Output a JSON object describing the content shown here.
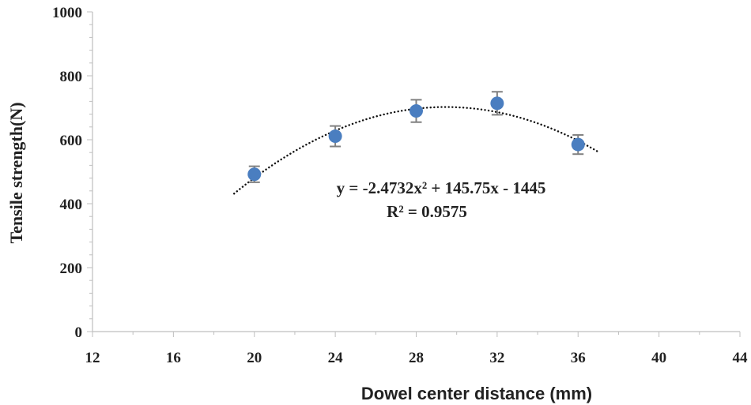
{
  "chart_data": {
    "type": "scatter",
    "xlabel": "Dowel center distance (mm)",
    "ylabel": "Tensile strength(N)",
    "xlim": [
      12,
      44
    ],
    "ylim": [
      0,
      1000
    ],
    "xticks": [
      12,
      16,
      20,
      24,
      28,
      32,
      36,
      40,
      44
    ],
    "yticks": [
      0,
      200,
      400,
      600,
      800,
      1000
    ],
    "grid": false,
    "points": [
      {
        "x": 20,
        "y": 492,
        "err": 25
      },
      {
        "x": 24,
        "y": 611,
        "err": 32
      },
      {
        "x": 28,
        "y": 690,
        "err": 35
      },
      {
        "x": 32,
        "y": 714,
        "err": 36
      },
      {
        "x": 36,
        "y": 585,
        "err": 30
      }
    ],
    "trendline": {
      "type": "polynomial",
      "order": 2,
      "coefficients": [
        -2.4732,
        145.75,
        -1445
      ],
      "x_range": [
        19,
        37
      ],
      "style": "dotted"
    },
    "annotations": {
      "equation": "y = -2.4732x² + 145.75x - 1445",
      "r_squared": "R² = 0.9575"
    },
    "colors": {
      "marker": "#4a7ec0",
      "error_bar": "#808080",
      "trendline": "#111111",
      "axis": "#bfbfbf"
    }
  }
}
